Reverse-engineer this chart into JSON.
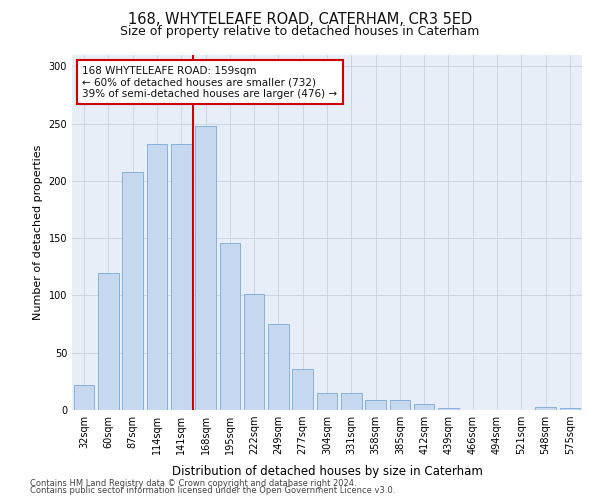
{
  "title1": "168, WHYTELEAFE ROAD, CATERHAM, CR3 5ED",
  "title2": "Size of property relative to detached houses in Caterham",
  "xlabel": "Distribution of detached houses by size in Caterham",
  "ylabel": "Number of detached properties",
  "categories": [
    "32sqm",
    "60sqm",
    "87sqm",
    "114sqm",
    "141sqm",
    "168sqm",
    "195sqm",
    "222sqm",
    "249sqm",
    "277sqm",
    "304sqm",
    "331sqm",
    "358sqm",
    "385sqm",
    "412sqm",
    "439sqm",
    "466sqm",
    "494sqm",
    "521sqm",
    "548sqm",
    "575sqm"
  ],
  "values": [
    22,
    120,
    208,
    232,
    232,
    248,
    146,
    101,
    75,
    36,
    15,
    15,
    9,
    9,
    5,
    2,
    0,
    0,
    0,
    3,
    2
  ],
  "bar_color": "#c5d8f0",
  "bar_edge_color": "#7aaad4",
  "vline_index": 5,
  "vline_color": "#cc0000",
  "annotation_text": "168 WHYTELEAFE ROAD: 159sqm\n← 60% of detached houses are smaller (732)\n39% of semi-detached houses are larger (476) →",
  "annotation_box_color": "#ffffff",
  "annotation_box_edge_color": "#cc0000",
  "ylim": [
    0,
    310
  ],
  "yticks": [
    0,
    50,
    100,
    150,
    200,
    250,
    300
  ],
  "grid_color": "#c8d0e0",
  "bg_color": "#e8eef8",
  "footer1": "Contains HM Land Registry data © Crown copyright and database right 2024.",
  "footer2": "Contains public sector information licensed under the Open Government Licence v3.0.",
  "title1_fontsize": 10.5,
  "title2_fontsize": 9,
  "ylabel_fontsize": 8,
  "xlabel_fontsize": 8.5,
  "tick_fontsize": 7,
  "footer_fontsize": 6,
  "annotation_fontsize": 7.5
}
